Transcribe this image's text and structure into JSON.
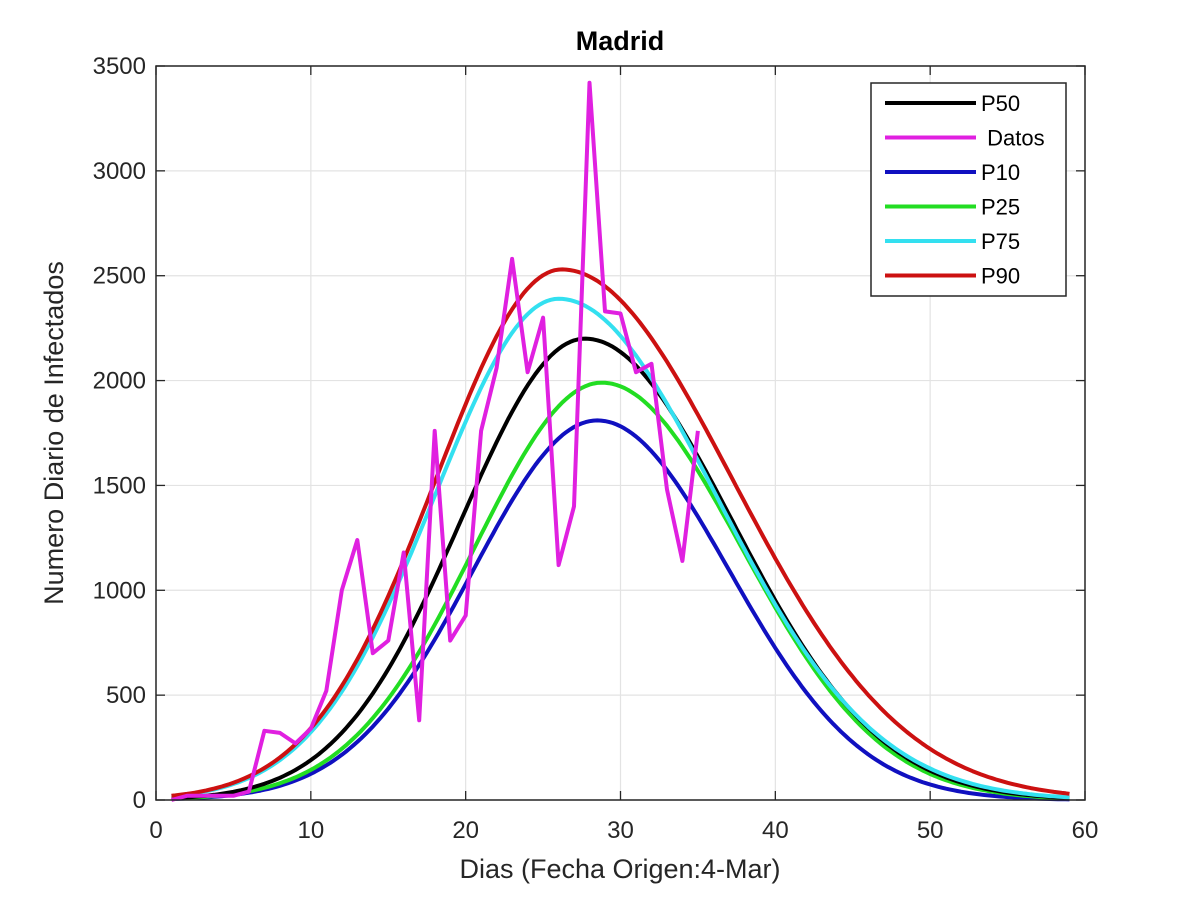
{
  "chart_data": {
    "type": "line",
    "title": "Madrid",
    "xlabel": "Dias (Fecha Origen:4-Mar)",
    "ylabel": "Numero Diario de Infectados",
    "xlim": [
      0,
      60
    ],
    "ylim": [
      0,
      3500
    ],
    "xticks": [
      0,
      10,
      20,
      30,
      40,
      50,
      60
    ],
    "yticks": [
      0,
      500,
      1000,
      1500,
      2000,
      2500,
      3000,
      3500
    ],
    "grid": true,
    "legend_position": "top-right",
    "series": [
      {
        "name": "P50",
        "color": "#000000",
        "model": "gaussian",
        "peak": 2200,
        "peak_day": 27.7,
        "sigma_left": 8.0,
        "sigma_right": 9.5,
        "x": [
          1,
          5,
          10,
          15,
          20,
          25,
          27,
          28,
          30,
          35,
          40,
          45,
          50,
          55,
          59
        ],
        "y": [
          80,
          160,
          440,
          900,
          1520,
          2080,
          2180,
          2200,
          2120,
          1540,
          810,
          330,
          130,
          52,
          30
        ]
      },
      {
        "name": " Datos",
        "color": "#E020E0",
        "model": "points",
        "x": [
          1,
          2,
          3,
          4,
          5,
          6,
          7,
          8,
          9,
          10,
          11,
          12,
          13,
          14,
          15,
          16,
          17,
          18,
          19,
          20,
          21,
          22,
          23,
          24,
          25,
          26,
          27,
          28,
          29,
          30,
          31,
          32,
          33,
          34,
          35
        ],
        "y": [
          0,
          20,
          20,
          20,
          20,
          40,
          330,
          320,
          270,
          340,
          520,
          1000,
          1240,
          700,
          760,
          1180,
          380,
          1760,
          760,
          880,
          1760,
          2060,
          2580,
          2040,
          2300,
          1120,
          1400,
          3420,
          2330,
          2320,
          2040,
          2080,
          1480,
          1140,
          1760
        ]
      },
      {
        "name": "P10",
        "color": "#1010C0",
        "model": "gaussian",
        "peak": 1810,
        "peak_day": 28.5,
        "sigma_left": 8.0,
        "sigma_right": 8.5,
        "x": [
          1,
          5,
          10,
          15,
          20,
          25,
          28,
          30,
          35,
          40,
          45,
          50,
          55,
          59
        ],
        "y": [
          70,
          130,
          330,
          670,
          1090,
          1590,
          1810,
          1740,
          1210,
          520,
          160,
          50,
          20,
          10
        ]
      },
      {
        "name": "P25",
        "color": "#22DD22",
        "model": "gaussian",
        "peak": 1990,
        "peak_day": 28.8,
        "sigma_left": 8.2,
        "sigma_right": 9.0,
        "x": [
          1,
          5,
          10,
          15,
          20,
          25,
          29,
          30,
          35,
          40,
          45,
          50,
          55,
          59
        ],
        "y": [
          70,
          140,
          360,
          740,
          1230,
          1790,
          1990,
          1960,
          1410,
          680,
          240,
          80,
          30,
          15
        ]
      },
      {
        "name": "P75",
        "color": "#33E0F0",
        "model": "gaussian",
        "peak": 2390,
        "peak_day": 26.0,
        "sigma_left": 8.0,
        "sigma_right": 10.2,
        "x": [
          1,
          5,
          10,
          15,
          20,
          26,
          30,
          35,
          40,
          45,
          50,
          55,
          59
        ],
        "y": [
          80,
          180,
          480,
          1000,
          1700,
          2390,
          2250,
          1700,
          990,
          450,
          180,
          70,
          40
        ]
      },
      {
        "name": "P90",
        "color": "#CC1111",
        "model": "gaussian",
        "peak": 2530,
        "peak_day": 26.2,
        "sigma_left": 8.1,
        "sigma_right": 11.0,
        "x": [
          1,
          5,
          10,
          15,
          20,
          26,
          30,
          35,
          40,
          45,
          50,
          55,
          59
        ],
        "y": [
          90,
          200,
          520,
          1080,
          1820,
          2530,
          2380,
          1920,
          1220,
          620,
          280,
          120,
          70
        ]
      }
    ]
  }
}
